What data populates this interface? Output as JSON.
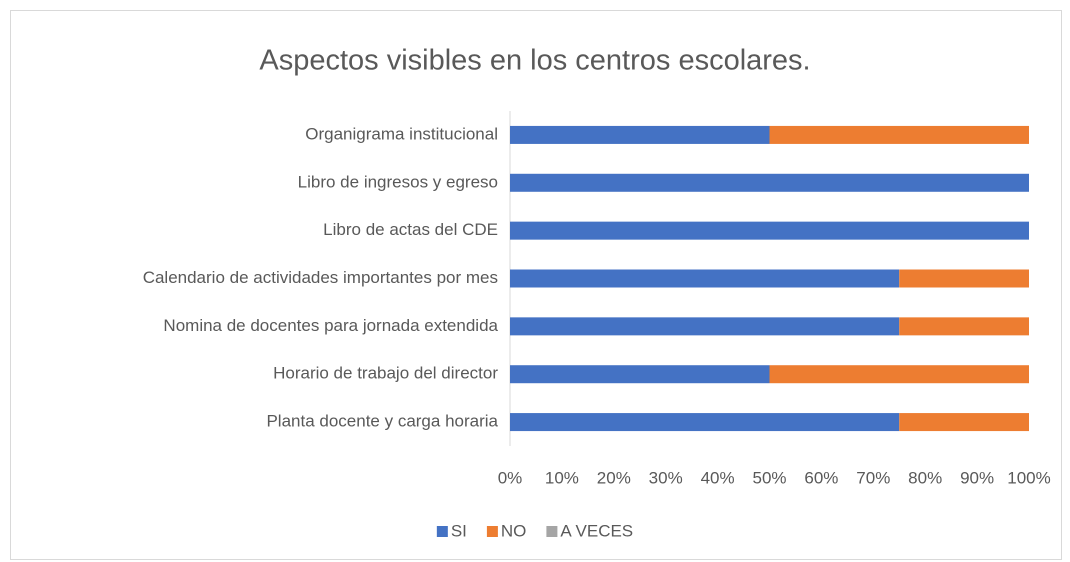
{
  "chart_data": {
    "type": "bar",
    "orientation": "horizontal",
    "stacked": true,
    "title": "Aspectos visibles en los centros escolares.",
    "categories": [
      "Organigrama institucional",
      "Libro de ingresos y egreso ",
      "Libro de actas del CDE",
      "Calendario de actividades importantes por mes",
      "Nomina de docentes para jornada extendida",
      "Horario de trabajo del director",
      "Planta docente y carga horaria"
    ],
    "series": [
      {
        "name": "SI",
        "color": "#4472c4",
        "values": [
          50,
          100,
          100,
          75,
          75,
          50,
          75
        ]
      },
      {
        "name": "NO",
        "color": "#ed7d31",
        "values": [
          50,
          0,
          0,
          25,
          25,
          50,
          25
        ]
      },
      {
        "name": "A VECES",
        "color": "#a5a5a5",
        "values": [
          0,
          0,
          0,
          0,
          0,
          0,
          0
        ]
      }
    ],
    "xlim": [
      0,
      100
    ],
    "xticks": [
      {
        "value": 0,
        "label": "0%"
      },
      {
        "value": 10,
        "label": "10%"
      },
      {
        "value": 20,
        "label": "20%"
      },
      {
        "value": 30,
        "label": "30%"
      },
      {
        "value": 40,
        "label": "40%"
      },
      {
        "value": 50,
        "label": "50%"
      },
      {
        "value": 60,
        "label": "60%"
      },
      {
        "value": 70,
        "label": "70%"
      },
      {
        "value": 80,
        "label": "80%"
      },
      {
        "value": 90,
        "label": "90%"
      },
      {
        "value": 100,
        "label": "100%"
      }
    ],
    "grid": false,
    "legend": "bottom"
  }
}
